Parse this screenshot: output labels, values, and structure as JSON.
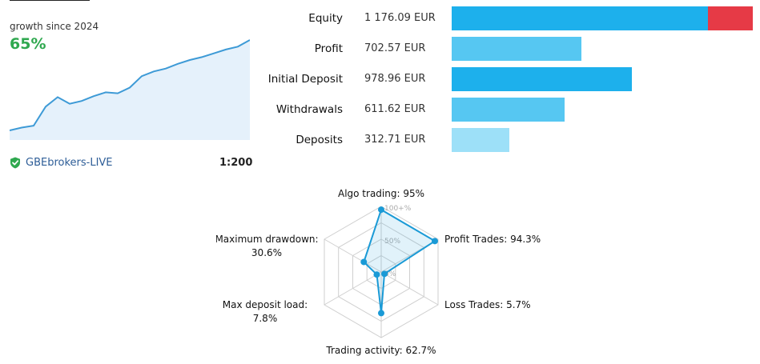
{
  "growth": {
    "label": "growth since 2024",
    "value": "65%",
    "sparkline": [
      0.05,
      0.08,
      0.1,
      0.3,
      0.4,
      0.33,
      0.36,
      0.41,
      0.45,
      0.44,
      0.5,
      0.62,
      0.67,
      0.7,
      0.75,
      0.79,
      0.82,
      0.86,
      0.9,
      0.93,
      1.0
    ],
    "line_color": "#3d9ad6",
    "fill_color": "#e5f1fb"
  },
  "account": {
    "broker": "GBEbrokers-LIVE",
    "leverage": "1:200",
    "verified_color": "#2fa84f"
  },
  "stats": [
    {
      "label": "Equity",
      "value": "1 176.09 EUR",
      "amount": 1176.09,
      "color": "#1db0ec",
      "overflow_color": "#e63a46"
    },
    {
      "label": "Profit",
      "value": "702.57 EUR",
      "amount": 702.57,
      "color": "#56c7f2"
    },
    {
      "label": "Initial Deposit",
      "value": "978.96 EUR",
      "amount": 978.96,
      "color": "#1db0ec"
    },
    {
      "label": "Withdrawals",
      "value": "611.62 EUR",
      "amount": 611.62,
      "color": "#56c7f2"
    },
    {
      "label": "Deposits",
      "value": "312.71 EUR",
      "amount": 312.71,
      "color": "#9de0f8"
    }
  ],
  "radar": {
    "scale_labels": [
      "100+%",
      "50%",
      "0%"
    ],
    "axes": [
      {
        "label": "Algo trading: 95%",
        "value": 95
      },
      {
        "label": "Profit Trades: 94.3%",
        "value": 94.3
      },
      {
        "label": "Loss Trades: 5.7%",
        "value": 5.7
      },
      {
        "label": "Trading activity: 62.7%",
        "value": 62.7
      },
      {
        "label": "Max deposit load:",
        "label2": "7.8%",
        "value": 7.8
      },
      {
        "label": "Maximum drawdown:",
        "label2": "30.6%",
        "value": 30.6
      }
    ],
    "color": "#1a9ad6"
  }
}
